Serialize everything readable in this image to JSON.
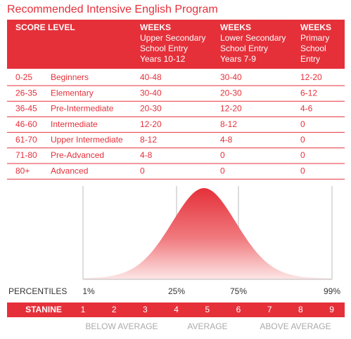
{
  "title": "Recommended Intensive English Program",
  "table": {
    "header": [
      [
        "SCORE LEVEL"
      ],
      [
        "WEEKS",
        "Upper Secondary",
        "School Entry",
        "Years 10-12"
      ],
      [
        "WEEKS",
        "Lower Secondary",
        "School Entry",
        "Years 7-9"
      ],
      [
        "WEEKS",
        "Primary",
        "School",
        "Entry"
      ]
    ],
    "rows": [
      [
        "0-25",
        "Beginners",
        "40-48",
        "30-40",
        "12-20"
      ],
      [
        "26-35",
        "Elementary",
        "30-40",
        "20-30",
        "6-12"
      ],
      [
        "36-45",
        "Pre-Intermediate",
        "20-30",
        "12-20",
        "4-6"
      ],
      [
        "46-60",
        "Intermediate",
        "12-20",
        "8-12",
        "0"
      ],
      [
        "61-70",
        "Upper Intermediate",
        "8-12",
        "4-8",
        "0"
      ],
      [
        "71-80",
        "Pre-Advanced",
        "4-8",
        "0",
        "0"
      ],
      [
        "80+",
        "Advanced",
        "0",
        "0",
        "0"
      ]
    ]
  },
  "percentiles": {
    "label": "PERCENTILES",
    "marks": [
      "1%",
      "25%",
      "75%",
      "99%"
    ]
  },
  "stanine": {
    "label": "STANINE",
    "values": [
      1,
      2,
      3,
      4,
      5,
      6,
      7,
      8,
      9
    ]
  },
  "bands": [
    "BELOW AVERAGE",
    "AVERAGE",
    "ABOVE AVERAGE"
  ]
}
